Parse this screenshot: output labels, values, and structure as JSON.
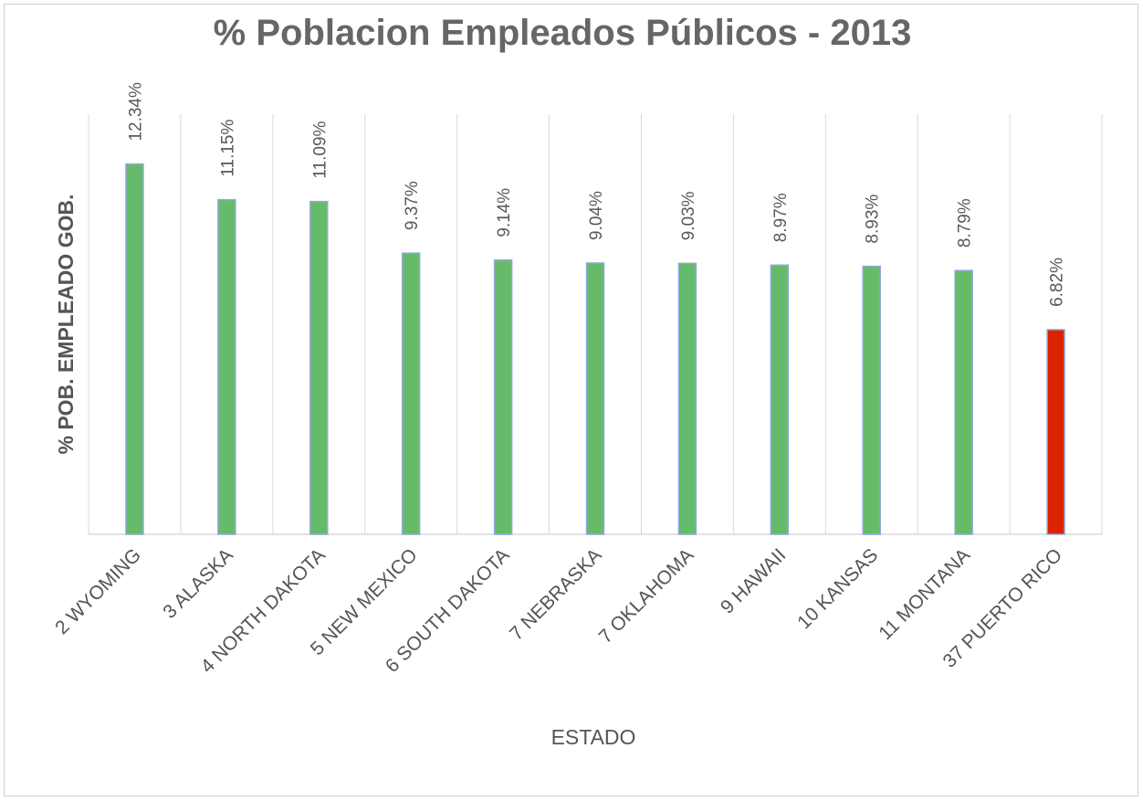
{
  "chart_data": {
    "type": "bar",
    "title": "% Poblacion Empleados Públicos - 2013",
    "xlabel": "ESTADO",
    "ylabel": "% POB. EMPLEADO GOB.",
    "ylim": [
      0,
      14
    ],
    "grid": "vertical separators",
    "legend": "none",
    "categories": [
      "2 WYOMING",
      "3 ALASKA",
      "4 NORTH DAKOTA",
      "5 NEW MEXICO",
      "6 SOUTH DAKOTA",
      "7 NEBRASKA",
      "7 OKLAHOMA",
      "9 HAWAII",
      "10 KANSAS",
      "11 MONTANA",
      "37 PUERTO RICO"
    ],
    "values": [
      12.34,
      11.15,
      11.09,
      9.37,
      9.14,
      9.04,
      9.03,
      8.97,
      8.93,
      8.79,
      6.82
    ],
    "value_labels": [
      "12.34%",
      "11.15%",
      "11.09%",
      "9.37%",
      "9.14%",
      "9.04%",
      "9.03%",
      "8.97%",
      "8.93%",
      "8.79%",
      "6.82%"
    ],
    "colors": [
      "#66bb6a",
      "#66bb6a",
      "#66bb6a",
      "#66bb6a",
      "#66bb6a",
      "#66bb6a",
      "#66bb6a",
      "#66bb6a",
      "#66bb6a",
      "#66bb6a",
      "#dd2200"
    ],
    "bar_outline_color": "#8eaadb"
  }
}
